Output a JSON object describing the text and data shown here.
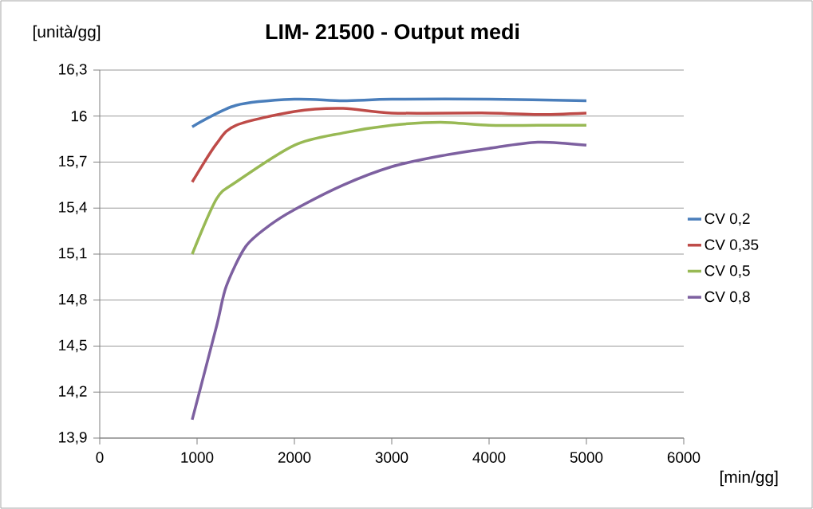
{
  "chart_data": {
    "type": "line",
    "title": "LIM- 21500 - Output medi",
    "xlabel": "[min/gg]",
    "ylabel": "[unità/gg]",
    "xlim": [
      0,
      6000
    ],
    "xticks": [
      0,
      1000,
      2000,
      3000,
      4000,
      5000,
      6000
    ],
    "ylim": [
      13.9,
      16.3
    ],
    "yticks": [
      {
        "value": 13.9,
        "label": "13,9"
      },
      {
        "value": 14.2,
        "label": "14,2"
      },
      {
        "value": 14.5,
        "label": "14,5"
      },
      {
        "value": 14.8,
        "label": "14,8"
      },
      {
        "value": 15.1,
        "label": "15,1"
      },
      {
        "value": 15.4,
        "label": "15,4"
      },
      {
        "value": 15.7,
        "label": "15,7"
      },
      16,
      {
        "value": 16.3,
        "label": "16,3"
      }
    ],
    "grid": "y",
    "legend": "right",
    "marker": "none",
    "line_style": "solid",
    "series": [
      {
        "name": "CV 0,2",
        "color": "#4a7ebb",
        "x": [
          950,
          1400,
          2000,
          2500,
          3000,
          4000,
          5000
        ],
        "values": [
          15.93,
          16.07,
          16.11,
          16.1,
          16.11,
          16.11,
          16.1
        ]
      },
      {
        "name": "CV 0,35",
        "color": "#be4b48",
        "x": [
          950,
          1200,
          1400,
          2000,
          2500,
          3000,
          4000,
          4500,
          5000
        ],
        "values": [
          15.57,
          15.82,
          15.94,
          16.03,
          16.05,
          16.02,
          16.02,
          16.01,
          16.02
        ]
      },
      {
        "name": "CV 0,5",
        "color": "#98b954",
        "x": [
          950,
          1200,
          1400,
          2000,
          2500,
          3000,
          3500,
          4000,
          4500,
          5000
        ],
        "values": [
          15.1,
          15.46,
          15.57,
          15.81,
          15.89,
          15.94,
          15.96,
          15.94,
          15.94,
          15.94
        ]
      },
      {
        "name": "CV 0,8",
        "color": "#7d60a0",
        "x": [
          950,
          1200,
          1300,
          1500,
          1750,
          2000,
          2500,
          3000,
          3500,
          4000,
          4500,
          5000
        ],
        "values": [
          14.02,
          14.63,
          14.89,
          15.15,
          15.29,
          15.39,
          15.55,
          15.67,
          15.74,
          15.79,
          15.83,
          15.81
        ]
      }
    ]
  }
}
